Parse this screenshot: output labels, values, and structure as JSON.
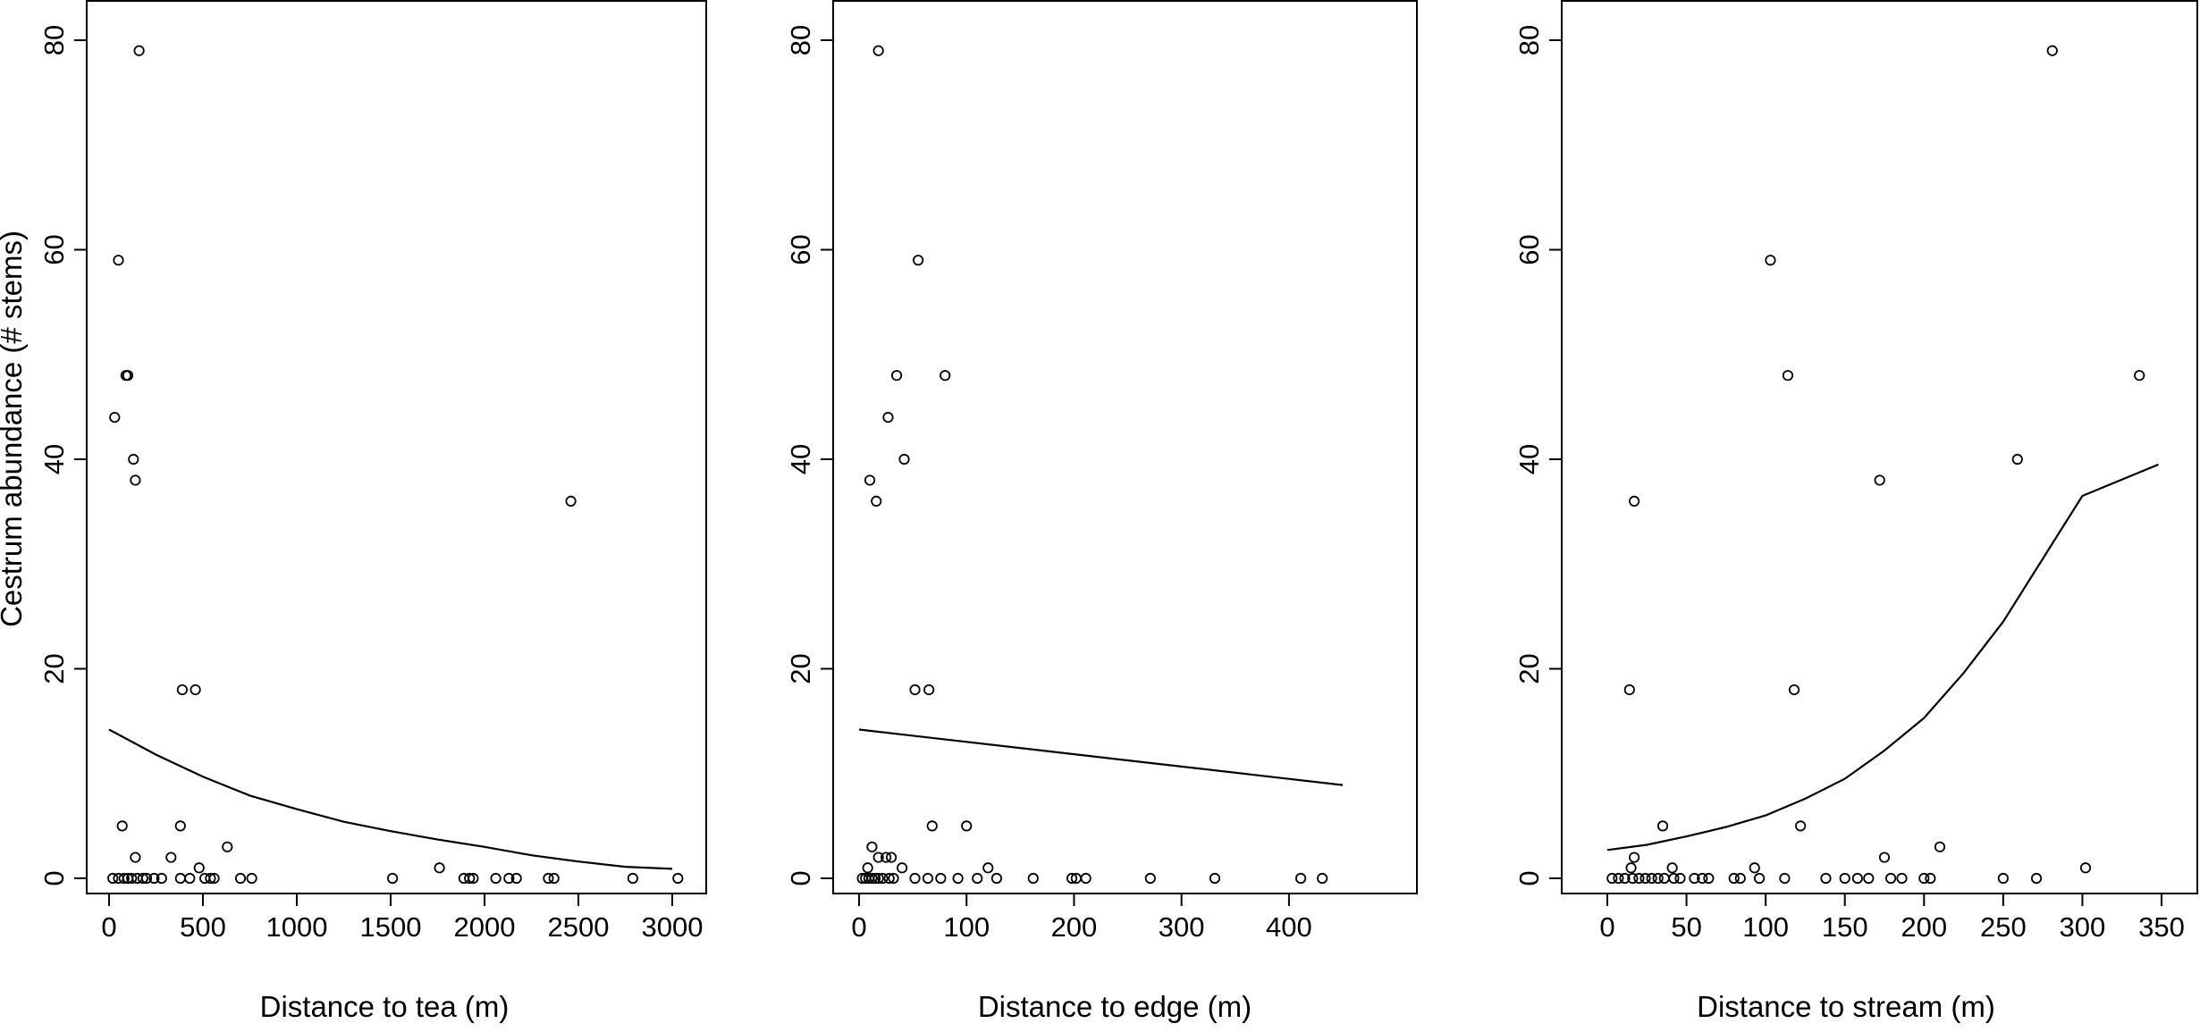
{
  "chart_data": [
    {
      "type": "scatter",
      "xlabel": "Distance to tea (m)",
      "ylabel": "Cestrum abundance (# stems)",
      "xlim": [
        0,
        3000
      ],
      "ylim": [
        0,
        80
      ],
      "xticks": [
        "0",
        "500",
        "1000",
        "1500",
        "2000",
        "2500",
        "3000"
      ],
      "yticks": [
        "0",
        "20",
        "40",
        "60",
        "80"
      ],
      "grid": false,
      "points": [
        [
          160,
          79
        ],
        [
          50,
          59
        ],
        [
          90,
          48
        ],
        [
          100,
          48
        ],
        [
          30,
          44
        ],
        [
          130,
          40
        ],
        [
          140,
          38
        ],
        [
          2460,
          36
        ],
        [
          390,
          18
        ],
        [
          460,
          18
        ],
        [
          70,
          5
        ],
        [
          380,
          5
        ],
        [
          630,
          3
        ],
        [
          140,
          2
        ],
        [
          330,
          2
        ],
        [
          480,
          1
        ],
        [
          1760,
          1
        ],
        [
          20,
          0
        ],
        [
          50,
          0
        ],
        [
          80,
          0
        ],
        [
          100,
          0
        ],
        [
          120,
          0
        ],
        [
          150,
          0
        ],
        [
          180,
          0
        ],
        [
          200,
          0
        ],
        [
          240,
          0
        ],
        [
          280,
          0
        ],
        [
          380,
          0
        ],
        [
          430,
          0
        ],
        [
          510,
          0
        ],
        [
          540,
          0
        ],
        [
          560,
          0
        ],
        [
          700,
          0
        ],
        [
          760,
          0
        ],
        [
          1510,
          0
        ],
        [
          1890,
          0
        ],
        [
          1920,
          0
        ],
        [
          1940,
          0
        ],
        [
          2060,
          0
        ],
        [
          2130,
          0
        ],
        [
          2170,
          0
        ],
        [
          2340,
          0
        ],
        [
          2370,
          0
        ],
        [
          2790,
          0
        ],
        [
          3030,
          0
        ]
      ],
      "fit_line": [
        [
          0,
          14.2
        ],
        [
          250,
          11.8
        ],
        [
          500,
          9.7
        ],
        [
          750,
          7.9
        ],
        [
          1000,
          6.6
        ],
        [
          1250,
          5.4
        ],
        [
          1500,
          4.5
        ],
        [
          1750,
          3.7
        ],
        [
          2000,
          3.0
        ],
        [
          2250,
          2.2
        ],
        [
          2500,
          1.6
        ],
        [
          2750,
          1.1
        ],
        [
          3000,
          0.9
        ]
      ]
    },
    {
      "type": "scatter",
      "xlabel": "Distance to edge (m)",
      "ylabel": "",
      "xlim": [
        0,
        450
      ],
      "ylim": [
        0,
        80
      ],
      "xticks": [
        "0",
        "100",
        "200",
        "300",
        "400"
      ],
      "yticks": [
        "0",
        "20",
        "40",
        "60",
        "80"
      ],
      "grid": false,
      "points": [
        [
          18,
          79
        ],
        [
          55,
          59
        ],
        [
          35,
          48
        ],
        [
          80,
          48
        ],
        [
          27,
          44
        ],
        [
          42,
          40
        ],
        [
          10,
          38
        ],
        [
          16,
          36
        ],
        [
          52,
          18
        ],
        [
          65,
          18
        ],
        [
          68,
          5
        ],
        [
          100,
          5
        ],
        [
          12,
          3
        ],
        [
          25,
          2
        ],
        [
          30,
          2
        ],
        [
          18,
          2
        ],
        [
          40,
          1
        ],
        [
          120,
          1
        ],
        [
          8,
          1
        ],
        [
          3,
          0
        ],
        [
          6,
          0
        ],
        [
          9,
          0
        ],
        [
          12,
          0
        ],
        [
          15,
          0
        ],
        [
          18,
          0
        ],
        [
          22,
          0
        ],
        [
          28,
          0
        ],
        [
          32,
          0
        ],
        [
          52,
          0
        ],
        [
          64,
          0
        ],
        [
          76,
          0
        ],
        [
          92,
          0
        ],
        [
          110,
          0
        ],
        [
          128,
          0
        ],
        [
          162,
          0
        ],
        [
          198,
          0
        ],
        [
          202,
          0
        ],
        [
          211,
          0
        ],
        [
          271,
          0
        ],
        [
          331,
          0
        ],
        [
          411,
          0
        ],
        [
          431,
          0
        ]
      ],
      "fit_line": [
        [
          0,
          14.2
        ],
        [
          450,
          8.9
        ]
      ]
    },
    {
      "type": "scatter",
      "xlabel": "Distance to stream (m)",
      "ylabel": "",
      "xlim": [
        0,
        350
      ],
      "ylim": [
        0,
        80
      ],
      "xticks": [
        "0",
        "50",
        "100",
        "150",
        "200",
        "250",
        "300",
        "350"
      ],
      "yticks": [
        "0",
        "20",
        "40",
        "60",
        "80"
      ],
      "grid": false,
      "points": [
        [
          281,
          79
        ],
        [
          103,
          59
        ],
        [
          114,
          48
        ],
        [
          336,
          48
        ],
        [
          259,
          40
        ],
        [
          172,
          38
        ],
        [
          17,
          36
        ],
        [
          14,
          18
        ],
        [
          118,
          18
        ],
        [
          35,
          5
        ],
        [
          122,
          5
        ],
        [
          210,
          3
        ],
        [
          17,
          2
        ],
        [
          175,
          2
        ],
        [
          15,
          1
        ],
        [
          41,
          1
        ],
        [
          93,
          1
        ],
        [
          302,
          1
        ],
        [
          3,
          0
        ],
        [
          7,
          0
        ],
        [
          11,
          0
        ],
        [
          16,
          0
        ],
        [
          20,
          0
        ],
        [
          24,
          0
        ],
        [
          28,
          0
        ],
        [
          32,
          0
        ],
        [
          36,
          0
        ],
        [
          42,
          0
        ],
        [
          46,
          0
        ],
        [
          55,
          0
        ],
        [
          60,
          0
        ],
        [
          64,
          0
        ],
        [
          80,
          0
        ],
        [
          84,
          0
        ],
        [
          96,
          0
        ],
        [
          112,
          0
        ],
        [
          138,
          0
        ],
        [
          150,
          0
        ],
        [
          158,
          0
        ],
        [
          165,
          0
        ],
        [
          179,
          0
        ],
        [
          186,
          0
        ],
        [
          200,
          0
        ],
        [
          204,
          0
        ],
        [
          250,
          0
        ],
        [
          271,
          0
        ]
      ],
      "fit_line": [
        [
          0,
          2.7
        ],
        [
          25,
          3.2
        ],
        [
          50,
          4.0
        ],
        [
          75,
          4.9
        ],
        [
          100,
          6.0
        ],
        [
          125,
          7.6
        ],
        [
          150,
          9.5
        ],
        [
          175,
          12.2
        ],
        [
          200,
          15.3
        ],
        [
          225,
          19.6
        ],
        [
          250,
          24.5
        ],
        [
          275,
          30.5
        ],
        [
          300,
          36.5
        ],
        [
          348,
          39.5
        ]
      ]
    }
  ]
}
